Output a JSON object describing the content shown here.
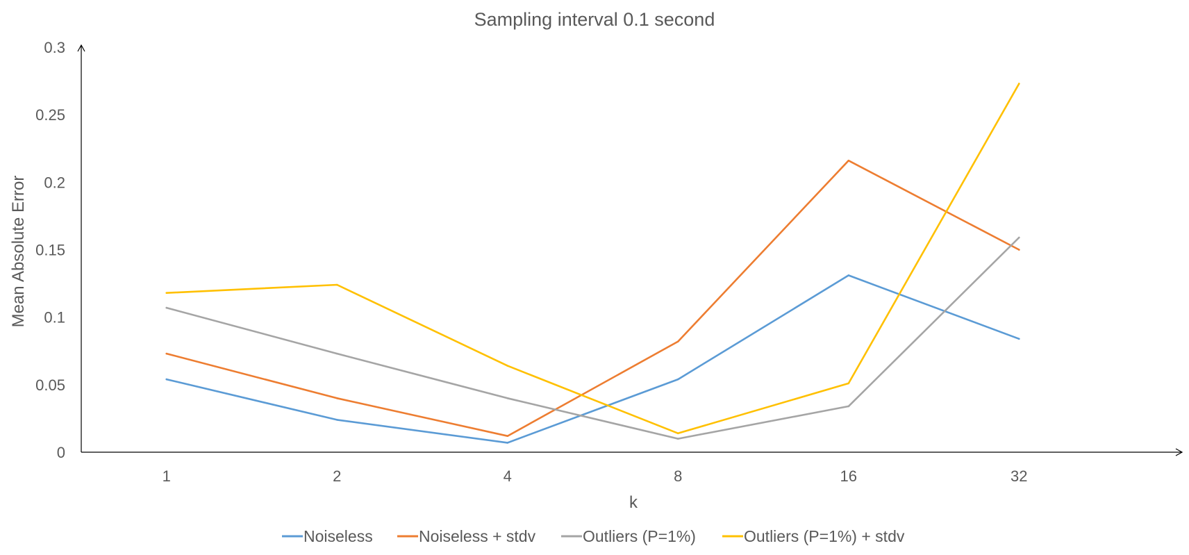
{
  "chart_data": {
    "type": "line",
    "title": "Sampling interval 0.1 second",
    "xlabel": "k",
    "ylabel": "Mean Absolute Error",
    "categories": [
      "1",
      "2",
      "4",
      "8",
      "16",
      "32"
    ],
    "ylim": [
      0,
      0.3
    ],
    "yticks": [
      0,
      0.05,
      0.1,
      0.15,
      0.2,
      0.25,
      0.3
    ],
    "ytick_labels": [
      "0",
      "0.05",
      "0.1",
      "0.15",
      "0.2",
      "0.25",
      "0.3"
    ],
    "grid": false,
    "legend_position": "bottom",
    "series": [
      {
        "name": "Noiseless",
        "color": "#5B9BD5",
        "values": [
          0.054,
          0.024,
          0.007,
          0.054,
          0.131,
          0.084
        ]
      },
      {
        "name": "Noiseless + stdv",
        "color": "#ED7D31",
        "values": [
          0.073,
          0.04,
          0.012,
          0.082,
          0.216,
          0.15
        ]
      },
      {
        "name": "Outliers (P=1%)",
        "color": "#A5A5A5",
        "values": [
          0.107,
          0.073,
          0.04,
          0.01,
          0.034,
          0.159
        ]
      },
      {
        "name": "Outliers (P=1%) + stdv",
        "color": "#FFC000",
        "values": [
          0.118,
          0.124,
          0.064,
          0.014,
          0.051,
          0.273
        ]
      }
    ]
  }
}
